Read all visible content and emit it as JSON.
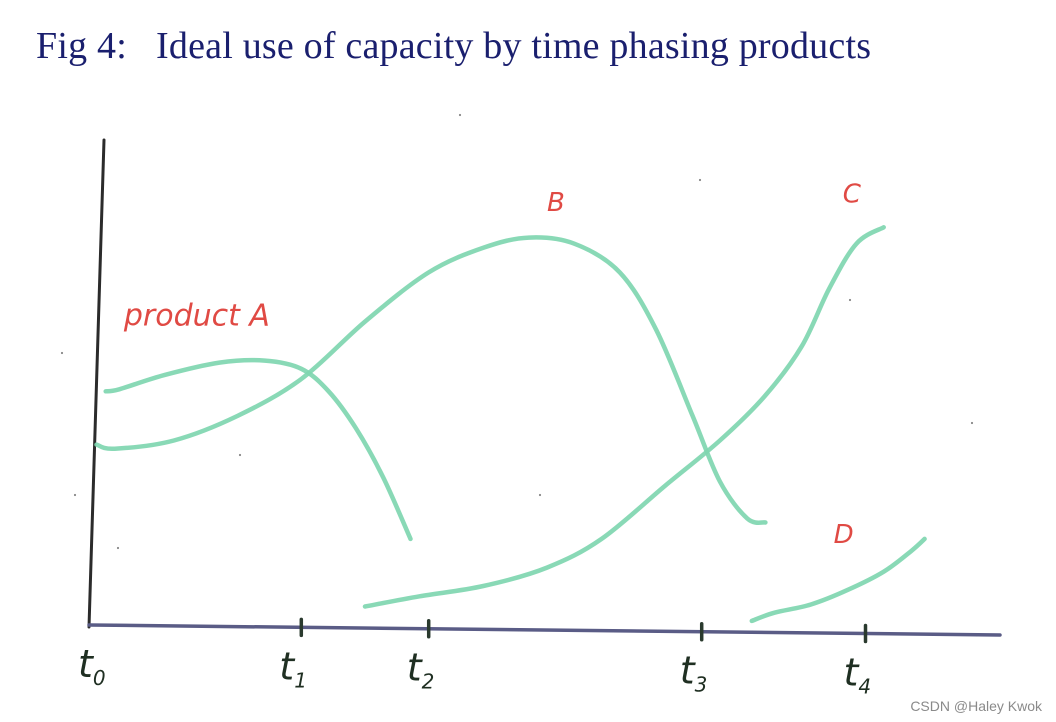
{
  "figure": {
    "title": "Fig 4:   Ideal use of capacity by time phasing products"
  },
  "chart_data": {
    "type": "line",
    "title": "Fig 4:   Ideal use of capacity by time phasing products",
    "xlabel": "",
    "ylabel": "",
    "grid": false,
    "xlim": [
      0,
      10
    ],
    "ylim": [
      0,
      10
    ],
    "x_ticks": [
      {
        "label": "t",
        "sub": "0",
        "x": 0
      },
      {
        "label": "t",
        "sub": "1",
        "x": 2.3
      },
      {
        "label": "t",
        "sub": "2",
        "x": 3.7
      },
      {
        "label": "t",
        "sub": "3",
        "x": 6.7
      },
      {
        "label": "t",
        "sub": "4",
        "x": 8.5
      }
    ],
    "series": [
      {
        "name": "product A",
        "label_at": {
          "x": 0.35,
          "y": 7.3
        },
        "points": [
          [
            0.15,
            5.7
          ],
          [
            0.3,
            5.75
          ],
          [
            0.8,
            6.1
          ],
          [
            1.4,
            6.4
          ],
          [
            1.9,
            6.45
          ],
          [
            2.3,
            6.25
          ],
          [
            2.6,
            5.7
          ],
          [
            2.9,
            4.8
          ],
          [
            3.2,
            3.6
          ],
          [
            3.5,
            2.1
          ]
        ]
      },
      {
        "name": "B",
        "label_at": {
          "x": 5.0,
          "y": 10.1
        },
        "points": [
          [
            0.05,
            4.4
          ],
          [
            0.25,
            4.3
          ],
          [
            0.9,
            4.5
          ],
          [
            1.6,
            5.1
          ],
          [
            2.3,
            6.0
          ],
          [
            3.0,
            7.4
          ],
          [
            3.7,
            8.6
          ],
          [
            4.3,
            9.2
          ],
          [
            4.8,
            9.45
          ],
          [
            5.3,
            9.3
          ],
          [
            5.8,
            8.6
          ],
          [
            6.2,
            7.2
          ],
          [
            6.6,
            5.1
          ],
          [
            6.9,
            3.5
          ],
          [
            7.2,
            2.6
          ],
          [
            7.4,
            2.5
          ]
        ]
      },
      {
        "name": "C",
        "label_at": {
          "x": 8.25,
          "y": 10.3
        },
        "points": [
          [
            3.0,
            0.45
          ],
          [
            3.6,
            0.7
          ],
          [
            4.3,
            0.95
          ],
          [
            5.0,
            1.4
          ],
          [
            5.6,
            2.1
          ],
          [
            6.3,
            3.4
          ],
          [
            6.9,
            4.5
          ],
          [
            7.4,
            5.6
          ],
          [
            7.8,
            6.8
          ],
          [
            8.1,
            8.2
          ],
          [
            8.4,
            9.3
          ],
          [
            8.7,
            9.7
          ]
        ]
      },
      {
        "name": "D",
        "label_at": {
          "x": 8.15,
          "y": 2.0
        },
        "points": [
          [
            7.25,
            0.1
          ],
          [
            7.5,
            0.3
          ],
          [
            7.9,
            0.5
          ],
          [
            8.3,
            0.85
          ],
          [
            8.7,
            1.3
          ],
          [
            9.0,
            1.8
          ],
          [
            9.15,
            2.1
          ]
        ]
      }
    ]
  },
  "style": {
    "axis_color": "#5a5c86",
    "curve_color": "#7fd6b0",
    "label_color": "#e04a44",
    "tick_color": "#2a3a2e"
  },
  "watermark": "CSDN @Haley Kwok"
}
